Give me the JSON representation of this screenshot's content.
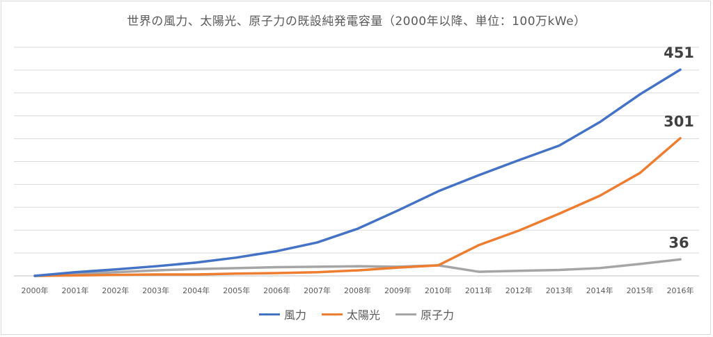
{
  "chart_data": {
    "type": "line",
    "title": "世界の風力、太陽光、原子力の既設純発電容量（2000年以降、単位：100万kWe）",
    "categories": [
      "2000年",
      "2001年",
      "2002年",
      "2003年",
      "2004年",
      "2005年",
      "2006年",
      "2007年",
      "2008年",
      "2009年",
      "2010年",
      "2011年",
      "2012年",
      "2013年",
      "2014年",
      "2015年",
      "2016年"
    ],
    "ylim": [
      0,
      500
    ],
    "y_gridline_step": 50,
    "grid": true,
    "legend_position": "bottom",
    "series": [
      {
        "name": "風力",
        "color": "#4472C4",
        "values": [
          0,
          8,
          14,
          21,
          29,
          40,
          54,
          73,
          103,
          143,
          185,
          220,
          253,
          285,
          336,
          397,
          451
        ]
      },
      {
        "name": "太陽光",
        "color": "#ED7D31",
        "values": [
          0,
          1,
          2,
          3,
          3,
          5,
          6,
          8,
          12,
          18,
          23,
          67,
          99,
          136,
          175,
          225,
          301
        ]
      },
      {
        "name": "原子力",
        "color": "#A5A5A5",
        "values": [
          0,
          4,
          8,
          12,
          15,
          17,
          19,
          20,
          21,
          20,
          23,
          9,
          11,
          13,
          17,
          26,
          36
        ]
      }
    ],
    "annotations": [
      {
        "series": 0,
        "index": 16,
        "text": "451"
      },
      {
        "series": 1,
        "index": 16,
        "text": "301"
      },
      {
        "series": 2,
        "index": 16,
        "text": "36"
      }
    ]
  }
}
